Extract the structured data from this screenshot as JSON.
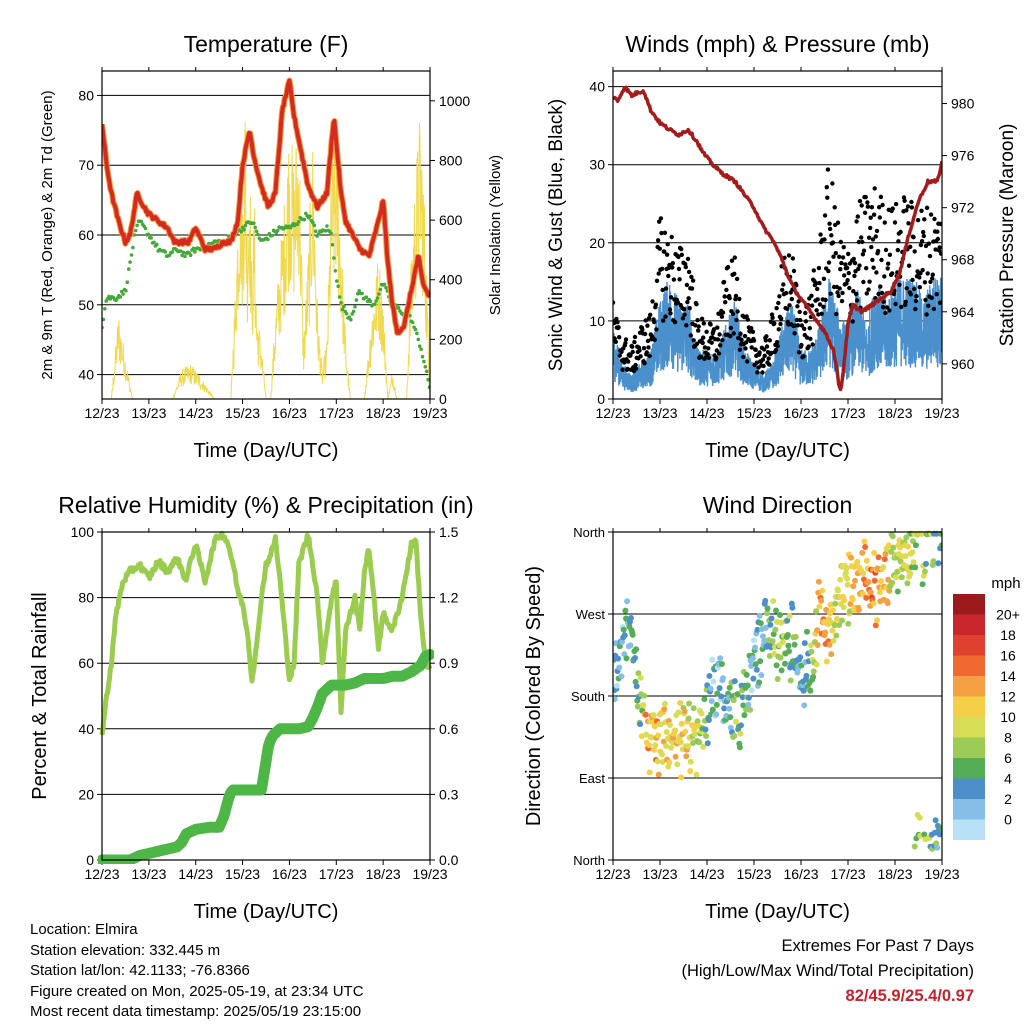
{
  "x_tick_labels": [
    "12/23",
    "13/23",
    "14/23",
    "15/23",
    "16/23",
    "17/23",
    "18/23",
    "19/23"
  ],
  "x_axis_label": "Time (Day/UTC)",
  "info": {
    "location": "Location: Elmira",
    "elevation": "Station elevation: 332.445 m",
    "latlon": "Station lat/lon: 42.1133; -76.8366",
    "created": "Figure created on Mon, 2025-05-19, at 23:34 UTC",
    "recent": "Most recent data timestamp: 2025/05/19 23:15:00"
  },
  "extremes": {
    "line1": "Extremes For Past 7 Days",
    "line2": "(High/Low/Max Wind/Total Precipitation)",
    "values": "82/45.9/25.4/0.97",
    "color": "#c0252a"
  },
  "chart_data": [
    {
      "type": "line",
      "title": "Temperature (F)",
      "xlabel": "Time (Day/UTC)",
      "ylabel": "2m & 9m T (Red, Orange) & 2m Td (Green)",
      "ylabel_right": "Solar Insolation (Yellow)",
      "x_range": [
        0,
        7
      ],
      "ylim": [
        36.5,
        83.5
      ],
      "yticks": [
        40,
        50,
        60,
        70,
        80
      ],
      "ylim_right": [
        0,
        1100
      ],
      "yticks_right": [
        0,
        200,
        400,
        600,
        800,
        1000
      ],
      "grid_y": true,
      "series": [
        {
          "color": "#d42a20",
          "axis": "left",
          "x": [
            0,
            0.1,
            0.2,
            0.35,
            0.5,
            0.6,
            0.75,
            0.9,
            1.0,
            1.2,
            1.4,
            1.55,
            1.7,
            1.85,
            2.0,
            2.2,
            2.4,
            2.6,
            2.75,
            2.9,
            3.0,
            3.15,
            3.25,
            3.4,
            3.55,
            3.7,
            3.85,
            4.0,
            4.1,
            4.25,
            4.4,
            4.6,
            4.8,
            4.95,
            5.1,
            5.2,
            5.35,
            5.5,
            5.7,
            5.9,
            6.0,
            6.1,
            6.2,
            6.3,
            6.45,
            6.6,
            6.75,
            6.85,
            7.0
          ],
          "y": [
            76,
            70,
            66,
            62,
            59,
            60,
            66,
            64,
            63,
            62,
            61,
            59,
            59,
            59,
            61,
            58,
            58,
            59,
            59,
            62,
            70,
            75,
            71,
            67,
            64,
            66,
            78,
            82,
            77,
            72,
            67,
            64,
            66,
            77,
            66,
            62,
            60,
            58,
            57,
            62,
            65,
            56,
            50,
            46,
            47,
            52,
            57,
            53,
            51
          ]
        },
        {
          "color": "#44a83a",
          "axis": "left",
          "x": [
            0,
            0.1,
            0.3,
            0.5,
            0.6,
            0.7,
            0.8,
            1.0,
            1.2,
            1.4,
            1.6,
            1.8,
            2.0,
            2.2,
            2.4,
            2.6,
            2.8,
            3.0,
            3.2,
            3.4,
            3.6,
            3.8,
            4.0,
            4.2,
            4.4,
            4.6,
            4.8,
            4.9,
            5.0,
            5.1,
            5.2,
            5.3,
            5.5,
            5.6,
            5.8,
            6.0,
            6.2,
            6.4,
            6.6,
            6.8,
            7.0
          ],
          "y": [
            47,
            51,
            51,
            52,
            56,
            60,
            62,
            60,
            58,
            57,
            58,
            57,
            58,
            58,
            59,
            59,
            60,
            61,
            62,
            59,
            60,
            61,
            61,
            62,
            63,
            60,
            61,
            60,
            54,
            50,
            49,
            48,
            52,
            51,
            50,
            53,
            50,
            49,
            48,
            44,
            38
          ]
        },
        {
          "color": "#f0d94e",
          "axis": "right",
          "thin": true,
          "x": [
            0,
            0.2,
            0.35,
            0.45,
            0.55,
            0.65,
            0.75,
            0.9,
            1.0,
            1.5,
            1.7,
            1.9,
            2.1,
            2.4,
            2.75,
            2.85,
            2.95,
            3.0,
            3.05,
            3.1,
            3.15,
            3.2,
            3.25,
            3.3,
            3.4,
            3.5,
            3.6,
            3.7,
            3.9,
            4.0,
            4.1,
            4.2,
            4.3,
            4.4,
            4.5,
            4.6,
            4.7,
            4.8,
            4.9,
            5.0,
            5.1,
            5.2,
            5.3,
            5.4,
            5.6,
            5.75,
            5.9,
            6.0,
            6.1,
            6.2,
            6.3,
            6.4,
            6.5,
            6.55,
            6.6,
            6.7,
            6.8,
            6.9,
            7.0
          ],
          "y": [
            0,
            0,
            300,
            200,
            100,
            0,
            0,
            0,
            0,
            0,
            100,
            120,
            80,
            0,
            0,
            400,
            900,
            700,
            1100,
            600,
            900,
            400,
            700,
            300,
            200,
            0,
            0,
            300,
            700,
            950,
            800,
            1000,
            200,
            500,
            900,
            300,
            100,
            200,
            800,
            950,
            600,
            200,
            0,
            0,
            0,
            300,
            500,
            350,
            0,
            100,
            0,
            0,
            0,
            250,
            500,
            800,
            1000,
            600,
            0
          ]
        }
      ]
    },
    {
      "type": "scatter",
      "title": "Winds (mph) & Pressure (mb)",
      "xlabel": "Time (Day/UTC)",
      "ylabel": "Sonic Wind & Gust (Blue, Black)",
      "ylabel_right": "Station Pressure (Maroon)",
      "x_range": [
        0,
        7
      ],
      "ylim": [
        0,
        42
      ],
      "yticks": [
        0,
        10,
        20,
        30,
        40
      ],
      "ylim_right": [
        957.3,
        982.5
      ],
      "yticks_right": [
        960,
        964,
        968,
        972,
        976,
        980
      ],
      "grid_y": true,
      "wind_x": [
        0,
        0.2,
        0.4,
        0.6,
        0.8,
        1.0,
        1.2,
        1.4,
        1.6,
        1.8,
        2.0,
        2.2,
        2.4,
        2.6,
        2.8,
        3.0,
        3.2,
        3.4,
        3.6,
        3.8,
        4.0,
        4.2,
        4.4,
        4.6,
        4.8,
        5.0,
        5.2,
        5.4,
        5.6,
        5.8,
        6.0,
        6.2,
        6.4,
        6.6,
        6.8,
        7.0
      ],
      "wind_mean": [
        6,
        3,
        2,
        3,
        4,
        8,
        10,
        8,
        8,
        4,
        4,
        4,
        6,
        8,
        4,
        3,
        2,
        3,
        6,
        8,
        4,
        4,
        6,
        10,
        7,
        6,
        9,
        6,
        10,
        8,
        10,
        10,
        10,
        8,
        10,
        10
      ],
      "gust_mean": [
        9,
        6,
        5,
        7,
        8,
        17,
        16,
        14,
        15,
        8,
        7,
        7,
        12,
        13,
        8,
        6,
        5,
        8,
        13,
        14,
        8,
        10,
        15,
        22,
        16,
        14,
        18,
        19,
        20,
        18,
        18,
        19,
        18,
        18,
        18,
        18
      ],
      "pressure": {
        "color": "#a31c1c",
        "x": [
          0,
          0.1,
          0.25,
          0.4,
          0.5,
          0.65,
          0.8,
          1.0,
          1.2,
          1.4,
          1.6,
          1.8,
          1.9,
          2.1,
          2.3,
          2.6,
          2.8,
          3.0,
          3.2,
          3.4,
          3.6,
          3.75,
          3.9,
          4.1,
          4.3,
          4.5,
          4.7,
          4.8,
          4.85,
          4.9,
          5.0,
          5.1,
          5.3,
          5.5,
          5.7,
          5.9,
          6.1,
          6.3,
          6.5,
          6.7,
          6.9,
          7.0
        ],
        "y": [
          980.5,
          980.2,
          981.3,
          980.6,
          980.8,
          981.0,
          979.5,
          978.5,
          978.0,
          977.6,
          978.0,
          977.0,
          976.3,
          975.4,
          974.7,
          974.0,
          973.0,
          972.0,
          970.5,
          969.5,
          968.0,
          966.5,
          965.5,
          964.5,
          963.5,
          962.5,
          961.0,
          958.5,
          958.0,
          959.5,
          963.0,
          964.5,
          964.0,
          964.5,
          965.0,
          965.5,
          967.0,
          970.0,
          972.5,
          974.0,
          974.0,
          975.5
        ]
      }
    },
    {
      "type": "line",
      "title": "Relative Humidity (%) & Precipitation (in)",
      "xlabel": "Time (Day/UTC)",
      "ylabel": "Percent & Total Rainfall",
      "x_range": [
        0,
        7
      ],
      "ylim": [
        0,
        100
      ],
      "yticks": [
        0,
        20,
        40,
        60,
        80,
        100
      ],
      "ylim_right": [
        0,
        1.5
      ],
      "yticks_right": [
        "0.0",
        "0.3",
        "0.6",
        "0.9",
        "1.2",
        "1.5"
      ],
      "grid_y": true,
      "series": [
        {
          "name": "RH",
          "color": "#9acc50",
          "axis": "left",
          "x": [
            0,
            0.1,
            0.2,
            0.3,
            0.45,
            0.6,
            0.8,
            1.0,
            1.2,
            1.4,
            1.6,
            1.8,
            1.9,
            2.0,
            2.2,
            2.4,
            2.5,
            2.6,
            2.7,
            2.8,
            2.9,
            3.0,
            3.1,
            3.2,
            3.3,
            3.4,
            3.5,
            3.6,
            3.7,
            3.8,
            3.9,
            4.0,
            4.1,
            4.2,
            4.3,
            4.4,
            4.5,
            4.6,
            4.7,
            4.8,
            4.9,
            5.0,
            5.1,
            5.2,
            5.3,
            5.4,
            5.5,
            5.6,
            5.7,
            5.8,
            5.9,
            6.0,
            6.2,
            6.4,
            6.6,
            6.7,
            6.8,
            6.9,
            7.0
          ],
          "y": [
            38,
            50,
            60,
            75,
            85,
            88,
            90,
            86,
            91,
            88,
            92,
            85,
            92,
            96,
            85,
            97,
            99,
            99,
            96,
            90,
            82,
            78,
            70,
            55,
            65,
            80,
            90,
            93,
            98,
            85,
            70,
            55,
            60,
            90,
            95,
            99,
            90,
            80,
            60,
            70,
            80,
            85,
            45,
            70,
            75,
            80,
            70,
            88,
            95,
            80,
            65,
            75,
            70,
            80,
            96,
            97,
            75,
            60,
            58
          ]
        },
        {
          "name": "Precip",
          "color": "#4eb547",
          "axis": "right",
          "thick": true,
          "x": [
            0,
            0.6,
            0.8,
            1.0,
            1.2,
            1.4,
            1.6,
            1.7,
            1.8,
            2.0,
            2.3,
            2.5,
            2.6,
            2.7,
            2.75,
            2.8,
            2.9,
            3.0,
            3.2,
            3.4,
            3.5,
            3.55,
            3.6,
            3.65,
            3.7,
            3.8,
            4.0,
            4.2,
            4.4,
            4.5,
            4.6,
            4.7,
            4.8,
            4.9,
            5.0,
            5.2,
            5.4,
            5.6,
            5.8,
            6.0,
            6.2,
            6.4,
            6.6,
            6.8,
            6.9,
            7.0
          ],
          "y": [
            0,
            0,
            0.02,
            0.03,
            0.04,
            0.05,
            0.06,
            0.08,
            0.12,
            0.14,
            0.15,
            0.15,
            0.2,
            0.28,
            0.31,
            0.32,
            0.32,
            0.32,
            0.32,
            0.32,
            0.45,
            0.52,
            0.55,
            0.57,
            0.58,
            0.6,
            0.6,
            0.6,
            0.61,
            0.65,
            0.7,
            0.76,
            0.78,
            0.8,
            0.8,
            0.8,
            0.81,
            0.83,
            0.83,
            0.83,
            0.84,
            0.84,
            0.86,
            0.89,
            0.93,
            0.94
          ]
        }
      ]
    },
    {
      "type": "scatter",
      "title": "Wind Direction",
      "xlabel": "Time (Day/UTC)",
      "ylabel": "Direction (Colored By Speed)",
      "x_range": [
        0,
        7
      ],
      "ylim": [
        0,
        360
      ],
      "yticks": [
        0,
        90,
        180,
        270,
        360
      ],
      "ytick_labels": [
        "North",
        "East",
        "South",
        "West",
        "North"
      ],
      "grid_y": true,
      "colorbar": {
        "title": "mph",
        "labels": [
          "20+",
          "18",
          "16",
          "14",
          "12",
          "10",
          "8",
          "6",
          "4",
          "2",
          "0"
        ],
        "colors": [
          "#9c1a1c",
          "#c8262a",
          "#e0412e",
          "#f06a2f",
          "#f5a043",
          "#f5cf48",
          "#d7de55",
          "#9ccb58",
          "#55ad58",
          "#4d8fc9",
          "#85bfe8",
          "#b8e0f6"
        ]
      },
      "dir_x": [
        0,
        0.2,
        0.35,
        0.5,
        0.7,
        0.9,
        1.1,
        1.3,
        1.5,
        1.7,
        1.9,
        2.1,
        2.25,
        2.4,
        2.6,
        2.8,
        3.0,
        3.2,
        3.4,
        3.6,
        3.8,
        4.0,
        4.2,
        4.4,
        4.6,
        4.8,
        5.0,
        5.2,
        5.4,
        5.6,
        5.8,
        6.0,
        6.2,
        6.4,
        6.6,
        6.8,
        7.0
      ],
      "dir_y": [
        185,
        235,
        265,
        200,
        140,
        130,
        132,
        133,
        132,
        134,
        136,
        185,
        200,
        170,
        160,
        175,
        215,
        250,
        255,
        230,
        240,
        200,
        220,
        275,
        250,
        280,
        290,
        300,
        305,
        300,
        320,
        320,
        330,
        350,
        345,
        355,
        355
      ],
      "dir_spd": [
        3,
        3,
        4,
        4,
        13,
        13,
        12,
        12,
        11,
        10,
        9,
        3,
        3,
        4,
        7,
        6,
        3,
        5,
        7,
        8,
        6,
        4,
        7,
        14,
        12,
        9,
        11,
        13,
        14,
        15,
        13,
        9,
        10,
        8,
        8,
        6,
        5
      ]
    }
  ]
}
